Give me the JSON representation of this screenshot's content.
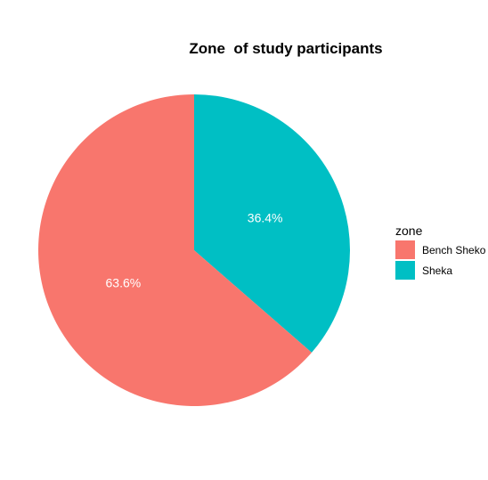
{
  "chart_data": {
    "type": "pie",
    "title": "Zone  of study participants",
    "categories": [
      "Bench Sheko",
      "Sheka"
    ],
    "values": [
      63.6,
      36.4
    ],
    "labels": [
      "63.6%",
      "36.4%"
    ],
    "colors": [
      "#F8766D",
      "#00BFC4"
    ],
    "legend": {
      "title": "zone",
      "position": "right"
    },
    "grid": false
  }
}
